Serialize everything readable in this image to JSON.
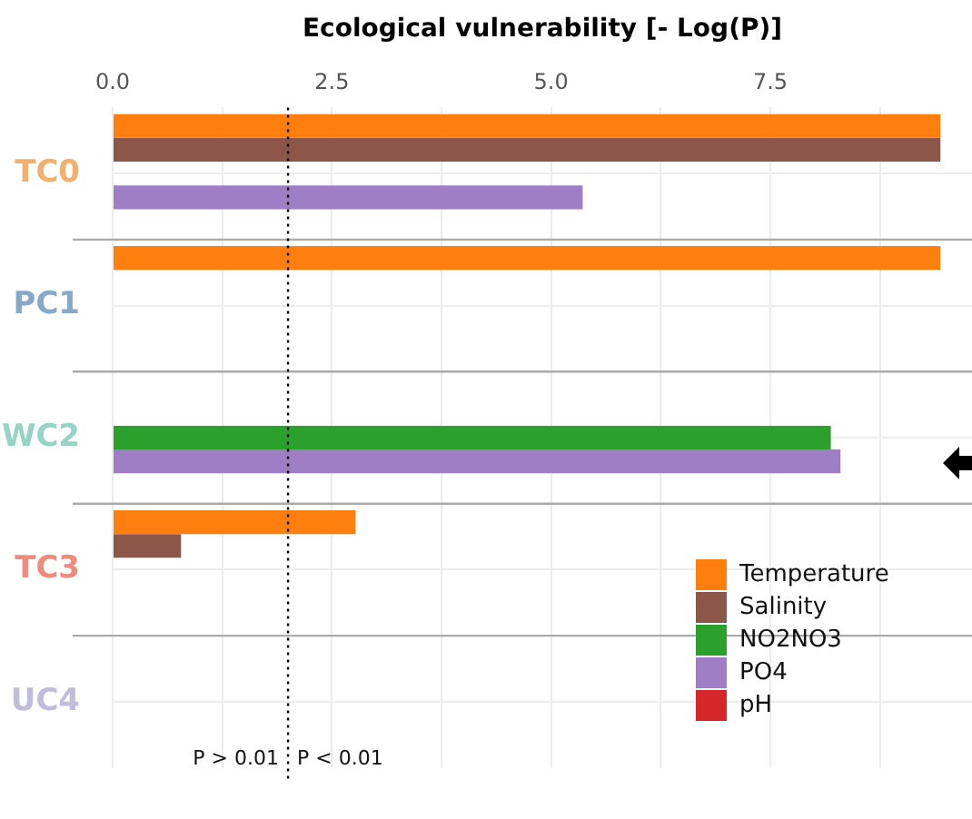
{
  "chart_data": {
    "type": "bar",
    "orientation": "horizontal",
    "xlabel": "Ecological vulnerability [- Log(P)]",
    "categories": [
      "TC0",
      "PC1",
      "WC2",
      "TC3",
      "UC4"
    ],
    "series": [
      {
        "name": "Temperature",
        "color": "#ff7f0e",
        "values": [
          9.44,
          9.44,
          null,
          2.77,
          null
        ]
      },
      {
        "name": "Salinity",
        "color": "#8c564b",
        "values": [
          9.44,
          null,
          null,
          0.78,
          null
        ]
      },
      {
        "name": "NO2NO3",
        "color": "#2ca02c",
        "values": [
          null,
          null,
          8.19,
          null,
          null
        ]
      },
      {
        "name": "PO4",
        "color": "#9f7ec6",
        "values": [
          5.36,
          null,
          8.3,
          null,
          null
        ]
      },
      {
        "name": "pH",
        "color": "#d62728",
        "values": [
          null,
          null,
          null,
          null,
          null
        ]
      }
    ],
    "xlim": [
      0,
      9.8
    ],
    "xticks": [
      {
        "value": 0,
        "label": "0.0"
      },
      {
        "value": 1.25,
        "label": null
      },
      {
        "value": 2.5,
        "label": "2.5"
      },
      {
        "value": 3.75,
        "label": null
      },
      {
        "value": 5,
        "label": "5.0"
      },
      {
        "value": 6.25,
        "label": null
      },
      {
        "value": 7.5,
        "label": "7.5"
      },
      {
        "value": 8.75,
        "label": null
      }
    ],
    "ref_lines": [
      {
        "axis": "x",
        "value": 2,
        "line_style": "dotted",
        "color": "#000000"
      }
    ],
    "annotations": [
      "P > 0.01",
      "P < 0.01"
    ],
    "grid": true,
    "legend": "bottom right"
  }
}
